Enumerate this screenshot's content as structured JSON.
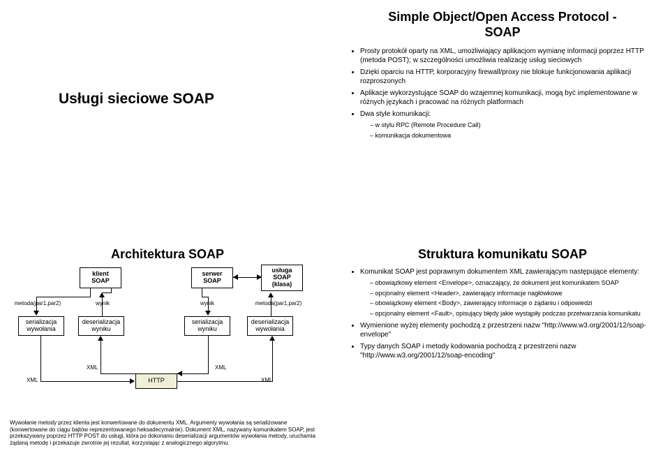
{
  "topLeft": {
    "title": "Usługi sieciowe SOAP"
  },
  "topRight": {
    "title_l1": "Simple Object/Open Access Protocol -",
    "title_l2": "SOAP",
    "bullets": [
      "Prosty protokół oparty na XML, umożliwiający aplikacjom wymianę informacji poprzez HTTP (metoda POST); w szczególności umożliwia realizację usług sieciowych",
      "Dzięki oparciu na HTTP, korporacyjny firewall/proxy nie blokuje funkcjonowania aplikacji rozproszonych",
      "Aplikacje wykorzystujące SOAP do wzajemnej komunikacji, mogą być implementowane w różnych językach i pracować na różnych platformach",
      "Dwa style komunikacji:"
    ],
    "sub": [
      "w stylu RPC (Remote Procedure Call)",
      "komunikacja dokumentowa"
    ]
  },
  "bottomLeft": {
    "title": "Architektura SOAP",
    "boxes": {
      "klient": "klient\nSOAP",
      "serwer": "serwer\nSOAP",
      "usluga": "usługa\nSOAP\n(klasa)",
      "ser_wyw": "serializacja\nwywołania",
      "deser_wyn": "deserializacja\nwyniku",
      "ser_wyn": "serializacja\nwyniku",
      "deser_wyw": "deserializacja\nwywołania",
      "xml1": "XML",
      "xml2": "XML",
      "xml3": "XML",
      "xml4": "XML",
      "http": "HTTP"
    },
    "labels": {
      "metoda_l": "metoda(par1,par2)",
      "wynik_l": "wynik",
      "wynik_r": "wynik",
      "metoda_r": "metoda(par1,par2)"
    },
    "caption": "Wywołanie metody przez klienta jest konwertowane do dokumentu XML. Argumenty wywołania są serializowane (konwertowane do ciągu bajtów reprezentowanego heksadecymalnie). Dokument XML, nazywany komunikatem SOAP, jest przekazywany poprzez HTTP POST do usługi, która po dokonaniu deserializacji argumentów wywołania metody, uruchamia żądaną metodę i przekazuje zwrotnie jej rezultat, korzystając z analogicznego algorytmu."
  },
  "bottomRight": {
    "title": "Struktura komunikatu SOAP",
    "b1": "Komunikat SOAP jest poprawnym dokumentem XML zawierającym następujące elementy:",
    "sub1": [
      "obowiązkowy element <Envelope>, oznaczający, że dokument jest komunikatem SOAP",
      "opcjonalny element <Header>, zawierający informacje nagłówkowe",
      "obowiązkowy element <Body>, zawierający informacje o żądaniu i odpowiedzi",
      "opcjonalny element <Fault>, opisujący błędy jakie wystąpiły podczas przetwarzania komunikatu"
    ],
    "b2": "Wymienione wyżej elementy pochodzą z przestrzeni nazw \"http://www.w3.org/2001/12/soap-envelope\"",
    "b3": "Typy danych SOAP i metody kodowania pochodzą z przestrzeni nazw \"http://www.w3.org/2001/12/soap-encoding\""
  },
  "colors": {
    "text": "#000000",
    "bg": "#ffffff",
    "httpFill": "#f0f0d8"
  }
}
